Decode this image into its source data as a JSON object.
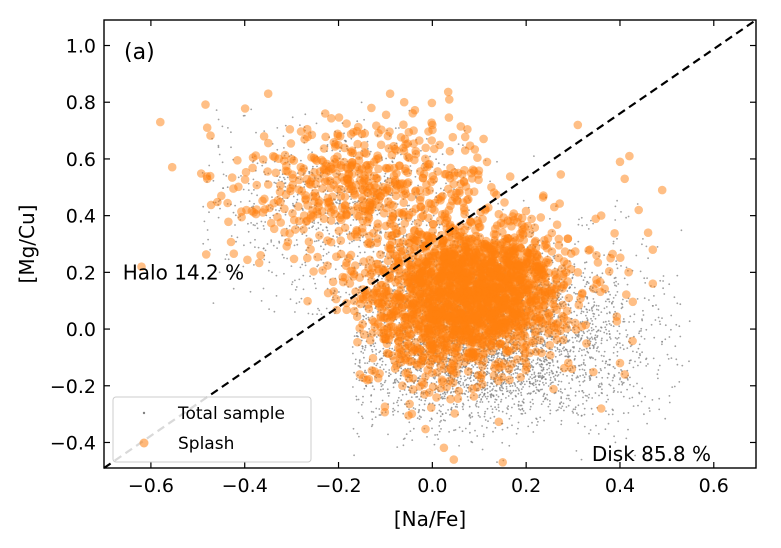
{
  "chart_data": {
    "type": "scatter",
    "panel_label": "(a)",
    "xlabel": "[Na/Fe]",
    "ylabel": "[Mg/Cu]",
    "xlim": [
      -0.7,
      0.69
    ],
    "ylim": [
      -0.49,
      1.09
    ],
    "x_ticks": [
      -0.6,
      -0.4,
      -0.2,
      0.0,
      0.2,
      0.4,
      0.6
    ],
    "x_tick_labels": [
      "−0.6",
      "−0.4",
      "−0.2",
      "0.0",
      "0.2",
      "0.4",
      "0.6"
    ],
    "y_ticks": [
      -0.4,
      -0.2,
      0.0,
      0.2,
      0.4,
      0.6,
      0.8,
      1.0
    ],
    "y_tick_labels": [
      "−0.4",
      "−0.2",
      "0.0",
      "0.2",
      "0.4",
      "0.6",
      "0.8",
      "1.0"
    ],
    "dividing_line": {
      "style": "dashed",
      "color": "#000000",
      "points": [
        [
          -0.7,
          -0.49
        ],
        [
          0.69,
          1.09
        ]
      ]
    },
    "annotations": [
      {
        "text": "Halo 14.2 %",
        "x": -0.66,
        "y": 0.2
      },
      {
        "text": "Disk 85.8 %",
        "x": 0.34,
        "y": -0.44
      }
    ],
    "legend": {
      "position": "lower-left",
      "entries": [
        {
          "label": "Total sample",
          "color": "#808080",
          "marker": "small-dot"
        },
        {
          "label": "Splash",
          "color": "#ff7f0e",
          "marker": "circle"
        }
      ]
    },
    "series": [
      {
        "name": "Total sample",
        "color": "#808080",
        "density": [
          {
            "center": [
              0.1,
              -0.1
            ],
            "spread": [
              0.16,
              0.12
            ],
            "weight": 0.4
          },
          {
            "center": [
              0.05,
              0.1
            ],
            "spread": [
              0.14,
              0.13
            ],
            "weight": 0.3
          },
          {
            "center": [
              0.25,
              0.0
            ],
            "spread": [
              0.14,
              0.16
            ],
            "weight": 0.15
          },
          {
            "center": [
              -0.2,
              0.45
            ],
            "spread": [
              0.14,
              0.14
            ],
            "weight": 0.15
          }
        ],
        "x_range": [
          -0.5,
          0.55
        ],
        "y_range": [
          -0.47,
          0.8
        ]
      },
      {
        "name": "Splash",
        "color": "#ff7f0e",
        "density": [
          {
            "center": [
              0.1,
              0.15
            ],
            "spread": [
              0.1,
              0.12
            ],
            "weight": 0.55
          },
          {
            "center": [
              0.0,
              0.05
            ],
            "spread": [
              0.1,
              0.15
            ],
            "weight": 0.25
          },
          {
            "center": [
              -0.15,
              0.5
            ],
            "spread": [
              0.13,
              0.12
            ],
            "weight": 0.2
          }
        ],
        "x_range": [
          -0.6,
          0.5
        ],
        "y_range": [
          -0.48,
          0.84
        ],
        "points": [
          [
            -0.58,
            0.73
          ],
          [
            -0.48,
            0.71
          ],
          [
            -0.35,
            0.83
          ],
          [
            -0.09,
            0.83
          ],
          [
            -0.06,
            0.8
          ],
          [
            -0.62,
            0.22
          ],
          [
            -0.45,
            0.47
          ],
          [
            -0.48,
            0.53
          ],
          [
            0.31,
            0.72
          ],
          [
            0.42,
            0.61
          ],
          [
            0.4,
            0.59
          ],
          [
            0.41,
            0.53
          ],
          [
            0.49,
            0.49
          ],
          [
            0.44,
            0.42
          ],
          [
            0.46,
            0.34
          ],
          [
            0.47,
            0.28
          ],
          [
            0.47,
            0.16
          ],
          [
            0.38,
            0.25
          ],
          [
            0.35,
            0.26
          ],
          [
            0.36,
            0.4
          ],
          [
            0.41,
            -0.16
          ],
          [
            0.36,
            -0.28
          ],
          [
            0.4,
            -0.12
          ],
          [
            0.15,
            -0.47
          ],
          [
            -0.13,
            0.78
          ],
          [
            -0.04,
            0.7
          ],
          [
            0.0,
            0.72
          ],
          [
            -0.27,
            0.46
          ],
          [
            -0.35,
            0.51
          ],
          [
            0.26,
            0.43
          ]
        ]
      }
    ]
  }
}
